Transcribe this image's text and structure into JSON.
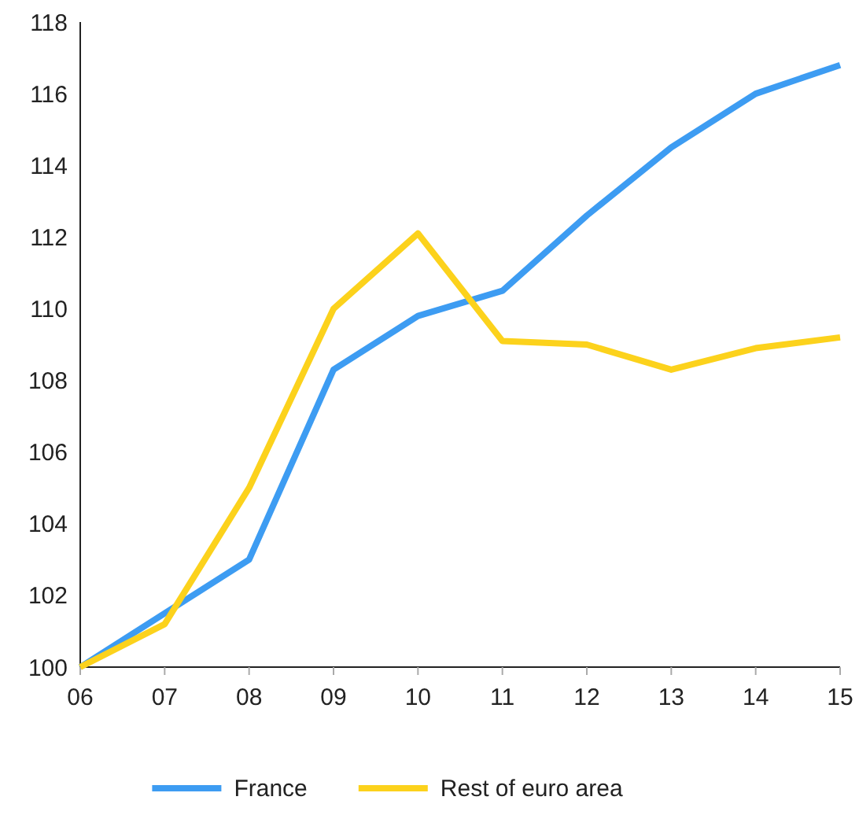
{
  "chart_data": {
    "type": "line",
    "categories": [
      "06",
      "07",
      "08",
      "09",
      "10",
      "11",
      "12",
      "13",
      "14",
      "15"
    ],
    "series": [
      {
        "name": "France",
        "color": "#3d9cf2",
        "values": [
          100,
          101.5,
          103,
          108.3,
          109.8,
          110.5,
          112.6,
          114.5,
          116,
          116.8
        ]
      },
      {
        "name": "Rest of euro area",
        "color": "#fcd21c",
        "values": [
          100,
          101.2,
          105,
          110,
          112.1,
          109.1,
          109,
          108.3,
          108.9,
          109.2
        ]
      }
    ],
    "ylim": [
      100,
      118
    ],
    "yticks": [
      100,
      102,
      104,
      106,
      108,
      110,
      112,
      114,
      116,
      118
    ],
    "grid": false,
    "legend": "bottom",
    "line_style": "solid",
    "marker": "none"
  }
}
